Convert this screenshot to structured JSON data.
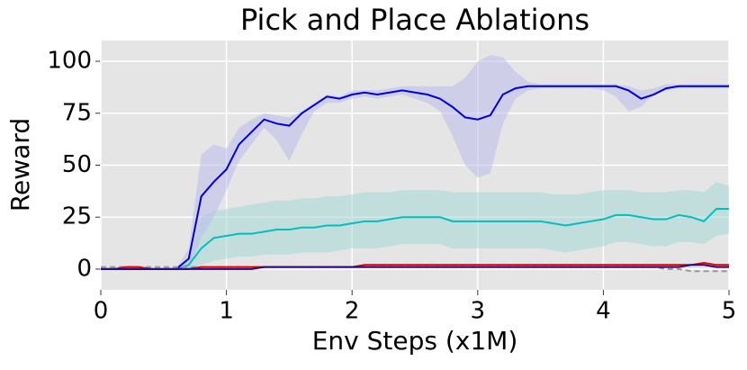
{
  "chart_data": {
    "type": "line",
    "title": "Pick and Place Ablations",
    "x_label": "Env Steps (x1M)",
    "y_label": "Reward",
    "x": [
      0,
      0.1,
      0.2,
      0.3,
      0.4,
      0.5,
      0.6,
      0.7,
      0.8,
      0.9,
      1.0,
      1.1,
      1.2,
      1.3,
      1.4,
      1.5,
      1.6,
      1.7,
      1.8,
      1.9,
      2.0,
      2.1,
      2.2,
      2.3,
      2.4,
      2.5,
      2.6,
      2.7,
      2.8,
      2.9,
      3.0,
      3.1,
      3.2,
      3.3,
      3.4,
      3.5,
      3.6,
      3.7,
      3.8,
      3.9,
      4.0,
      4.1,
      4.2,
      4.3,
      4.4,
      4.5,
      4.6,
      4.7,
      4.8,
      4.9,
      5.0
    ],
    "series": [
      {
        "color": "#00bfbf",
        "band_color": "#9fd8d4",
        "values": [
          0,
          0,
          0,
          0,
          0,
          0,
          0,
          2,
          10,
          15,
          16,
          17,
          17,
          18,
          19,
          19,
          20,
          20,
          21,
          21,
          22,
          23,
          23,
          24,
          25,
          25,
          25,
          25,
          23,
          23,
          23,
          23,
          23,
          23,
          23,
          23,
          22,
          21,
          22,
          23,
          24,
          26,
          26,
          25,
          24,
          24,
          26,
          25,
          23,
          29,
          29
        ],
        "band": {
          "upper": [
            0,
            0,
            0,
            0,
            0,
            0,
            0,
            3,
            25,
            28,
            29,
            30,
            31,
            32,
            33,
            33,
            34,
            34,
            35,
            35,
            36,
            37,
            37,
            37,
            38,
            38,
            38,
            38,
            37,
            37,
            37,
            37,
            37,
            37,
            37,
            37,
            36,
            36,
            36,
            37,
            38,
            38,
            38,
            37,
            37,
            37,
            38,
            38,
            37,
            42,
            40
          ],
          "lower": [
            0,
            0,
            0,
            0,
            0,
            0,
            0,
            0,
            2,
            4,
            5,
            6,
            6,
            7,
            7,
            7,
            8,
            8,
            8,
            9,
            10,
            10,
            10,
            11,
            12,
            12,
            12,
            12,
            10,
            10,
            10,
            10,
            10,
            10,
            10,
            10,
            9,
            8,
            9,
            10,
            11,
            13,
            13,
            12,
            11,
            11,
            13,
            13,
            12,
            16,
            17
          ]
        }
      },
      {
        "color": "#0000dd",
        "band_color": "#b8b8ee",
        "values": [
          0,
          0,
          0,
          0,
          0,
          0,
          0,
          5,
          35,
          42,
          48,
          60,
          66,
          72,
          70,
          69,
          75,
          79,
          83,
          82,
          84,
          85,
          84,
          85,
          86,
          85,
          84,
          82,
          78,
          73,
          72,
          74,
          84,
          87,
          88,
          88,
          88,
          88,
          88,
          88,
          88,
          88,
          86,
          82,
          84,
          87,
          88,
          88,
          88,
          88,
          88
        ],
        "band": {
          "upper": [
            0,
            0,
            0,
            0,
            0,
            0,
            0,
            10,
            55,
            60,
            58,
            68,
            72,
            75,
            74,
            73,
            76,
            80,
            84,
            83,
            86,
            86,
            86,
            87,
            88,
            88,
            88,
            88,
            88,
            92,
            100,
            103,
            102,
            95,
            90,
            89,
            89,
            89,
            89,
            89,
            89,
            89,
            88,
            86,
            87,
            89,
            89,
            89,
            89,
            89,
            89
          ],
          "lower": [
            0,
            0,
            0,
            0,
            0,
            0,
            0,
            0,
            15,
            25,
            38,
            52,
            60,
            68,
            62,
            52,
            65,
            76,
            80,
            80,
            82,
            83,
            82,
            83,
            84,
            82,
            80,
            76,
            64,
            50,
            44,
            46,
            70,
            82,
            86,
            87,
            87,
            87,
            87,
            87,
            86,
            83,
            76,
            78,
            84,
            86,
            87,
            87,
            87,
            87,
            87
          ]
        }
      },
      {
        "color": "#999999",
        "dash": true,
        "values": [
          1,
          1,
          1,
          1,
          1,
          1,
          1,
          1,
          1,
          1,
          1,
          1,
          1,
          1,
          1,
          1,
          1,
          1,
          1,
          1,
          1,
          1,
          1,
          1,
          1,
          1,
          1,
          1,
          1,
          1,
          1,
          1,
          1,
          1,
          1,
          1,
          1,
          1,
          1,
          1,
          1,
          1,
          1,
          1,
          1,
          0,
          0,
          -1,
          -1,
          -1,
          -1
        ]
      },
      {
        "color": "#e00000",
        "values": [
          0,
          0,
          1,
          1,
          0,
          0,
          0,
          0,
          1,
          1,
          1,
          1,
          1,
          1,
          1,
          1,
          1,
          1,
          1,
          1,
          1,
          2,
          2,
          2,
          2,
          2,
          2,
          2,
          2,
          2,
          2,
          2,
          2,
          2,
          2,
          2,
          2,
          2,
          2,
          2,
          2,
          2,
          2,
          2,
          2,
          2,
          2,
          2,
          3,
          2,
          2
        ]
      },
      {
        "color": "#2a0a80",
        "values": [
          0,
          0,
          0,
          0,
          0,
          0,
          0,
          0,
          0,
          0,
          0,
          0,
          0,
          1,
          1,
          1,
          1,
          1,
          1,
          1,
          1,
          1,
          1,
          1,
          1,
          1,
          1,
          1,
          1,
          1,
          1,
          1,
          1,
          1,
          1,
          1,
          1,
          1,
          1,
          1,
          1,
          1,
          1,
          1,
          1,
          1,
          1,
          2,
          2,
          1,
          1
        ]
      }
    ],
    "xlim": [
      0,
      5
    ],
    "ylim": [
      -10,
      110
    ],
    "xticks": [
      0,
      1,
      2,
      3,
      4,
      5
    ],
    "yticks": [
      0,
      25,
      50,
      75,
      100
    ],
    "grid": true
  }
}
